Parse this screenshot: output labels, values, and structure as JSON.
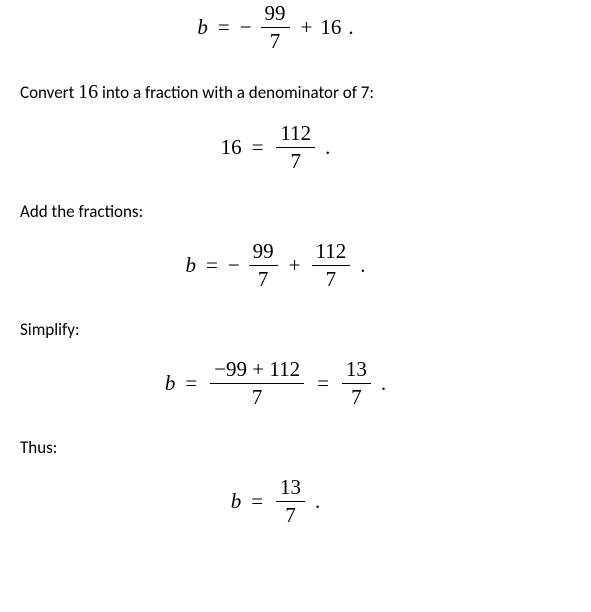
{
  "page": {
    "background_color": "#ffffff",
    "text_color": "#000000",
    "body_fontsize": 17,
    "math_fontsize": 21
  },
  "eq1": {
    "lhs": "b",
    "rhs_neg_num": "99",
    "rhs_neg_den": "7",
    "plus_term": "16"
  },
  "text1": {
    "part1": "Convert ",
    "num": "16",
    "part2": " into a fraction with a denominator of 7:"
  },
  "eq2": {
    "lhs": "16",
    "num": "112",
    "den": "7"
  },
  "text2": "Add the fractions:",
  "eq3": {
    "lhs": "b",
    "neg_num": "99",
    "neg_den": "7",
    "plus_num": "112",
    "plus_den": "7"
  },
  "text3": "Simplify:",
  "eq4": {
    "lhs": "b",
    "num1": "−99 + 112",
    "den1": "7",
    "num2": "13",
    "den2": "7"
  },
  "text4": "Thus:",
  "eq5": {
    "lhs": "b",
    "num": "13",
    "den": "7"
  }
}
